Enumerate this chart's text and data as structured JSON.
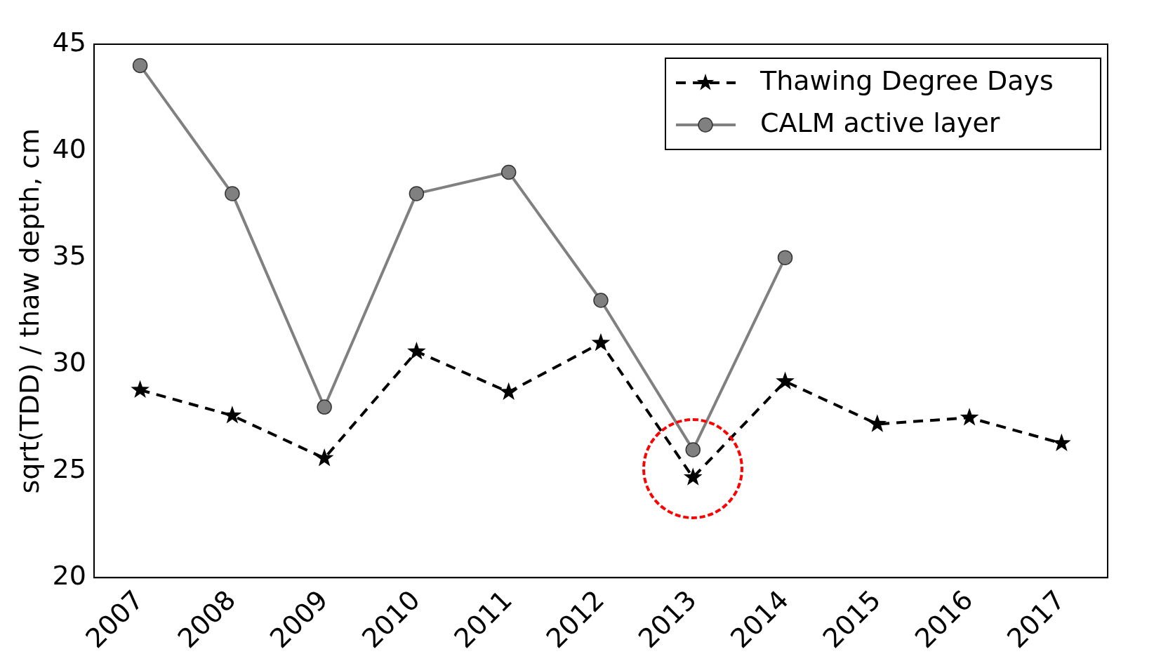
{
  "chart_data": {
    "type": "line",
    "ylabel": "sqrt(TDD) / thaw depth, cm",
    "categories": [
      "2007",
      "2008",
      "2009",
      "2010",
      "2011",
      "2012",
      "2013",
      "2014",
      "2015",
      "2016",
      "2017"
    ],
    "series": [
      {
        "name": "Thawing Degree Days",
        "color": "#000000",
        "marker": "star",
        "line_style": "dashed",
        "values": [
          28.8,
          27.6,
          25.6,
          30.6,
          28.7,
          31.0,
          24.7,
          29.2,
          27.2,
          27.5,
          26.3
        ]
      },
      {
        "name": "CALM active layer",
        "color": "#808080",
        "marker": "circle",
        "line_style": "solid",
        "values": [
          44,
          38,
          28,
          38,
          39,
          33,
          26,
          35,
          null,
          null,
          null
        ]
      }
    ],
    "ylim": [
      20,
      45
    ],
    "yticks": [
      20,
      25,
      30,
      35,
      40,
      45
    ],
    "grid": false,
    "legend": "top right"
  }
}
